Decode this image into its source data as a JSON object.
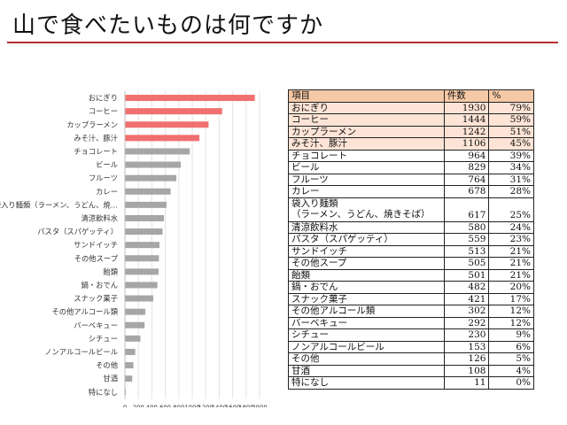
{
  "title": "山で食べたいものは何ですか",
  "colors": {
    "highlight_bar": "#f07070",
    "normal_bar": "#a6a6a6",
    "header_fill": "#f6c9a6",
    "row_fill": "#fde4d6",
    "rule": "#b32f2f"
  },
  "chart_data": {
    "type": "bar",
    "orientation": "horizontal",
    "title": "",
    "categories": [
      "おにぎり",
      "コーヒー",
      "カップラーメン",
      "みそ汁、豚汁",
      "チョコレート",
      "ビール",
      "フルーツ",
      "カレー",
      "袋入り麺類（ラーメン、うどん、焼…",
      "清涼飲料水",
      "パスタ（スパゲッティ）",
      "サンドイッチ",
      "その他スープ",
      "飴類",
      "鍋・おでん",
      "スナック菓子",
      "その他アルコール類",
      "バーベキュー",
      "シチュー",
      "ノンアルコールビール",
      "その他",
      "甘酒",
      "特になし"
    ],
    "values": [
      1930,
      1444,
      1242,
      1106,
      964,
      829,
      764,
      678,
      617,
      580,
      559,
      513,
      505,
      501,
      482,
      421,
      302,
      292,
      230,
      153,
      126,
      108,
      11
    ],
    "highlighted": [
      true,
      true,
      true,
      true,
      false,
      false,
      false,
      false,
      false,
      false,
      false,
      false,
      false,
      false,
      false,
      false,
      false,
      false,
      false,
      false,
      false,
      false,
      false
    ],
    "xlim": [
      0,
      2000
    ],
    "xticks": [
      "0",
      "200",
      "400",
      "600",
      "800",
      "1000",
      "1200",
      "1400",
      "1600",
      "1800",
      "2000"
    ],
    "xlabel": "",
    "ylabel": "",
    "grid": true
  },
  "table": {
    "headers": [
      "項目",
      "件数",
      "%"
    ],
    "rows": [
      {
        "label": "おにぎり",
        "count": "1930",
        "pct": "79%",
        "hl": true
      },
      {
        "label": "コーヒー",
        "count": "1444",
        "pct": "59%",
        "hl": true
      },
      {
        "label": "カップラーメン",
        "count": "1242",
        "pct": "51%",
        "hl": true
      },
      {
        "label": "みそ汁、豚汁",
        "count": "1106",
        "pct": "45%",
        "hl": true
      },
      {
        "label": "チョコレート",
        "count": "964",
        "pct": "39%",
        "hl": false
      },
      {
        "label": "ビール",
        "count": "829",
        "pct": "34%",
        "hl": false
      },
      {
        "label": "フルーツ",
        "count": "764",
        "pct": "31%",
        "hl": false
      },
      {
        "label": "カレー",
        "count": "678",
        "pct": "28%",
        "hl": false
      },
      {
        "label": "袋入り麺類",
        "label2": "（ラーメン、うどん、焼きそば）",
        "count": "617",
        "pct": "25%",
        "hl": false
      },
      {
        "label": "清涼飲料水",
        "count": "580",
        "pct": "24%",
        "hl": false
      },
      {
        "label": "パスタ（スパゲッティ）",
        "count": "559",
        "pct": "23%",
        "hl": false
      },
      {
        "label": "サンドイッチ",
        "count": "513",
        "pct": "21%",
        "hl": false
      },
      {
        "label": "その他スープ",
        "count": "505",
        "pct": "21%",
        "hl": false
      },
      {
        "label": "飴類",
        "count": "501",
        "pct": "21%",
        "hl": false
      },
      {
        "label": "鍋・おでん",
        "count": "482",
        "pct": "20%",
        "hl": false
      },
      {
        "label": "スナック菓子",
        "count": "421",
        "pct": "17%",
        "hl": false
      },
      {
        "label": "その他アルコール類",
        "count": "302",
        "pct": "12%",
        "hl": false
      },
      {
        "label": "バーベキュー",
        "count": "292",
        "pct": "12%",
        "hl": false
      },
      {
        "label": "シチュー",
        "count": "230",
        "pct": "9%",
        "hl": false
      },
      {
        "label": "ノンアルコールビール",
        "count": "153",
        "pct": "6%",
        "hl": false
      },
      {
        "label": "その他",
        "count": "126",
        "pct": "5%",
        "hl": false
      },
      {
        "label": "甘酒",
        "count": "108",
        "pct": "4%",
        "hl": false
      },
      {
        "label": "特になし",
        "count": "11",
        "pct": "0%",
        "hl": false
      }
    ]
  }
}
